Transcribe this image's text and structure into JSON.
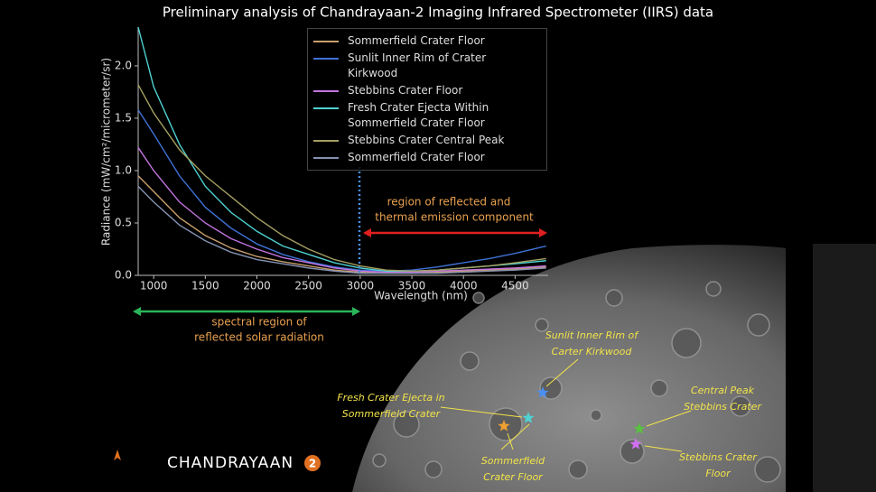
{
  "chart_data": {
    "type": "line",
    "title": "Preliminary analysis of Chandrayaan-2 Imaging Infrared Spectrometer (IIRS) data",
    "x_label": "Wavelength (nm)",
    "y_label": "Radiance (mW/cm²/micrometer/sr)",
    "x": [
      850,
      1000,
      1250,
      1500,
      1750,
      2000,
      2250,
      2500,
      2750,
      3000,
      3250,
      3500,
      3750,
      4000,
      4250,
      4500,
      4800
    ],
    "series": [
      {
        "name": "Sommerfield Crater Floor",
        "color": "#c9a06e",
        "values": [
          0.95,
          0.8,
          0.55,
          0.38,
          0.26,
          0.18,
          0.13,
          0.09,
          0.05,
          0.03,
          0.02,
          0.02,
          0.03,
          0.04,
          0.05,
          0.06,
          0.08
        ]
      },
      {
        "name": "Sunlit Inner Rim of Crater Kirkwood",
        "color": "#3f72d6",
        "values": [
          1.58,
          1.35,
          0.95,
          0.65,
          0.45,
          0.3,
          0.2,
          0.13,
          0.08,
          0.05,
          0.04,
          0.05,
          0.08,
          0.12,
          0.16,
          0.21,
          0.28
        ]
      },
      {
        "name": "Stebbins Crater Floor",
        "color": "#c374e0",
        "values": [
          1.22,
          1.0,
          0.7,
          0.5,
          0.35,
          0.25,
          0.17,
          0.12,
          0.07,
          0.04,
          0.03,
          0.03,
          0.04,
          0.05,
          0.06,
          0.07,
          0.09
        ]
      },
      {
        "name": "Fresh Crater Ejecta Within Sommerfield Crater Floor",
        "color": "#4fd2d2",
        "values": [
          2.37,
          1.8,
          1.25,
          0.85,
          0.6,
          0.42,
          0.28,
          0.2,
          0.12,
          0.07,
          0.04,
          0.04,
          0.05,
          0.07,
          0.09,
          0.11,
          0.14
        ]
      },
      {
        "name": "Stebbins Crater Central Peak",
        "color": "#a5a062",
        "values": [
          1.82,
          1.55,
          1.2,
          0.95,
          0.75,
          0.55,
          0.38,
          0.25,
          0.15,
          0.09,
          0.05,
          0.04,
          0.05,
          0.07,
          0.09,
          0.12,
          0.16
        ]
      },
      {
        "name": "Sommerfield Crater Floor",
        "color": "#8492b2",
        "values": [
          0.85,
          0.7,
          0.48,
          0.33,
          0.22,
          0.15,
          0.11,
          0.07,
          0.04,
          0.02,
          0.02,
          0.02,
          0.02,
          0.03,
          0.04,
          0.05,
          0.07
        ]
      }
    ],
    "xlim": [
      850,
      4820
    ],
    "ylim": [
      0,
      2.37
    ],
    "xticks": [
      1000,
      1500,
      2000,
      2500,
      3000,
      3500,
      4000,
      4500
    ],
    "yticks": [
      {
        "value": 0,
        "label": "0.0"
      },
      {
        "value": 0.5,
        "label": "0.5"
      },
      {
        "value": 1,
        "label": "1.0"
      },
      {
        "value": 1.5,
        "label": "1.5"
      },
      {
        "value": 2,
        "label": "2.0"
      }
    ],
    "legend": "upper right",
    "annotations": [
      {
        "lines": [
          "region of reflected and",
          "thermal emission component"
        ]
      },
      {
        "lines": [
          "spectral region of",
          "reflected solar radiation"
        ]
      }
    ]
  },
  "moon_labels": [
    {
      "lines": [
        "Sunlit Inner Rim of",
        "Carter Kirkwood"
      ]
    },
    {
      "lines": [
        "Fresh Crater Ejecta in",
        "Sommerfield Crater"
      ]
    },
    {
      "lines": [
        "Central Peak",
        "Stebbins Crater"
      ]
    },
    {
      "lines": [
        "Sommerfield",
        "Crater Floor"
      ]
    },
    {
      "lines": [
        "Stebbins Crater",
        "Floor"
      ]
    }
  ],
  "branding": {
    "mission": "CHANDRAYAAN",
    "number": "2"
  }
}
